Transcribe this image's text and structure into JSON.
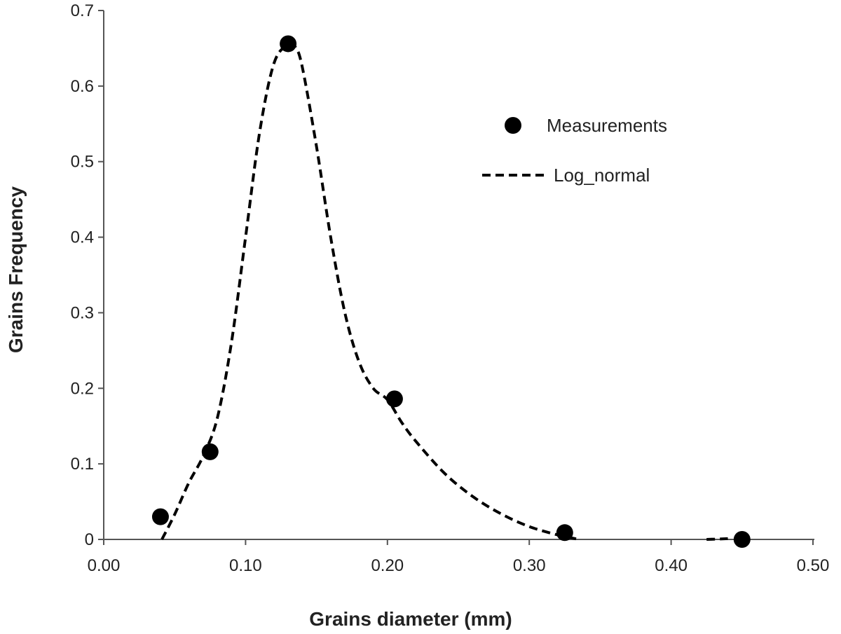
{
  "chart_data": {
    "type": "scatter",
    "xlabel": "Grains diameter (mm)",
    "ylabel": "Grains Frequency",
    "xlim": [
      0,
      0.5
    ],
    "ylim": [
      0,
      0.7
    ],
    "x_ticks": [
      "0.00",
      "0.10",
      "0.20",
      "0.30",
      "0.40",
      "0.50"
    ],
    "y_ticks": [
      "0",
      "0.1",
      "0.2",
      "0.3",
      "0.4",
      "0.5",
      "0.6",
      "0.7"
    ],
    "legend": {
      "placement": "top-right"
    },
    "series": [
      {
        "name": "Measurements",
        "style": "markers",
        "color": "#000000",
        "x": [
          0.04,
          0.075,
          0.13,
          0.205,
          0.325,
          0.45
        ],
        "y": [
          0.03,
          0.116,
          0.656,
          0.186,
          0.009,
          0.0
        ]
      },
      {
        "name": "Log_normal",
        "style": "dashed-line",
        "color": "#000000",
        "x": [
          0.041,
          0.05,
          0.06,
          0.07,
          0.08,
          0.09,
          0.1,
          0.11,
          0.12,
          0.13,
          0.135,
          0.14,
          0.15,
          0.16,
          0.17,
          0.18,
          0.19,
          0.2,
          0.21,
          0.22,
          0.24,
          0.26,
          0.28,
          0.3,
          0.32,
          0.335
        ],
        "y": [
          0.0,
          0.033,
          0.075,
          0.11,
          0.16,
          0.26,
          0.4,
          0.54,
          0.63,
          0.655,
          0.652,
          0.625,
          0.52,
          0.4,
          0.3,
          0.235,
          0.2,
          0.185,
          0.155,
          0.13,
          0.088,
          0.057,
          0.034,
          0.017,
          0.006,
          0.0
        ]
      },
      {
        "name": "",
        "style": "dashed-line",
        "color": "#000000",
        "x": [
          0.425,
          0.44
        ],
        "y": [
          0.0,
          0.001
        ]
      }
    ]
  }
}
